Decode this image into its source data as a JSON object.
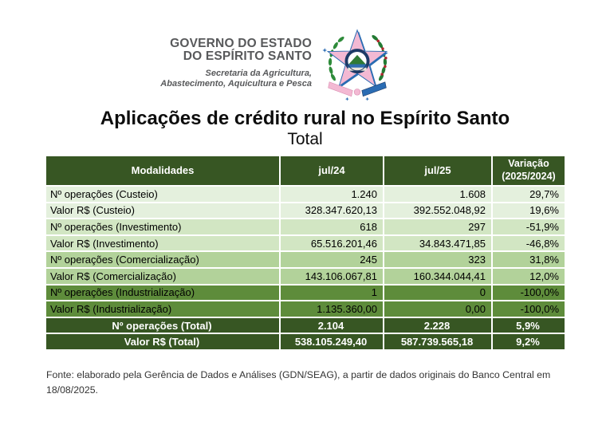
{
  "letterhead": {
    "org_line1": "GOVERNO DO ESTADO",
    "org_line2": "DO ESPÍRITO SANTO",
    "dept_line1": "Secretaria da Agricultura,",
    "dept_line2": "Abastecimento, Aquicultura e Pesca",
    "emblem_name": "espirito-santo-coat-of-arms"
  },
  "title": "Aplicações de crédito rural no Espírito Santo",
  "subtitle": "Total",
  "table": {
    "columns": {
      "modalidades": "Modalidades",
      "jul24": "jul/24",
      "jul25": "jul/25",
      "variacao_line1": "Variação",
      "variacao_line2": "(2025/2024)"
    },
    "rows": [
      {
        "label": "Nº operações (Custeio)",
        "jul24": "1.240",
        "jul25": "1.608",
        "variacao": "29,7%",
        "total": false
      },
      {
        "label": "Valor R$ (Custeio)",
        "jul24": "328.347.620,13",
        "jul25": "392.552.048,92",
        "variacao": "19,6%",
        "total": false
      },
      {
        "label": "Nº operações (Investimento)",
        "jul24": "618",
        "jul25": "297",
        "variacao": "-51,9%",
        "total": false
      },
      {
        "label": "Valor R$ (Investimento)",
        "jul24": "65.516.201,46",
        "jul25": "34.843.471,85",
        "variacao": "-46,8%",
        "total": false
      },
      {
        "label": "Nº operações (Comercialização)",
        "jul24": "245",
        "jul25": "323",
        "variacao": "31,8%",
        "total": false
      },
      {
        "label": "Valor R$ (Comercialização)",
        "jul24": "143.106.067,81",
        "jul25": "160.344.044,41",
        "variacao": "12,0%",
        "total": false
      },
      {
        "label": "Nº operações (Industrialização)",
        "jul24": "1",
        "jul25": "0",
        "variacao": "-100,0%",
        "total": false
      },
      {
        "label": "Valor R$ (Industrialização)",
        "jul24": "1.135.360,00",
        "jul25": "0,00",
        "variacao": "-100,0%",
        "total": false
      },
      {
        "label": "Nº operações (Total)",
        "jul24": "2.104",
        "jul25": "2.228",
        "variacao": "5,9%",
        "total": true
      },
      {
        "label": "Valor R$ (Total)",
        "jul24": "538.105.249,40",
        "jul25": "587.739.565,18",
        "variacao": "9,2%",
        "total": true
      }
    ]
  },
  "colors": {
    "header_bg": "#375623",
    "total_bg": "#375623",
    "row_bands": [
      "#e4f0dd",
      "#d2e6c3",
      "#b2d29a",
      "#5e8c3b"
    ],
    "header_text": "#ffffff",
    "body_text": "#000000",
    "org_text": "#58595b",
    "emblem_pink": "#f3b9d3",
    "emblem_blue": "#2a6cb3",
    "emblem_green": "#2e8b3a"
  },
  "footer": {
    "source": "Fonte: elaborado pela Gerência de Dados e Análises (GDN/SEAG), a partir de dados originais do Banco Central em 18/08/2025."
  }
}
